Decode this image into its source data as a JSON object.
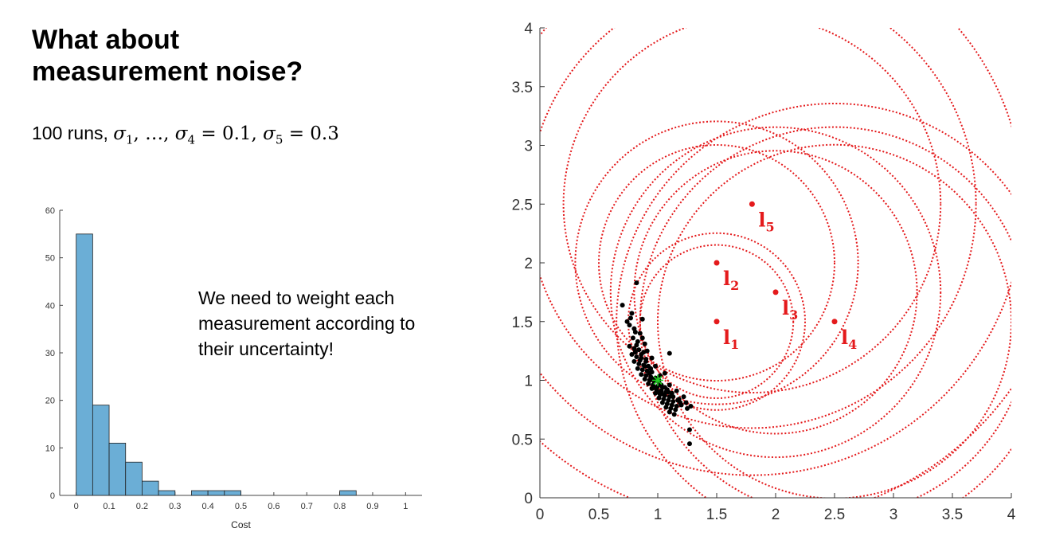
{
  "slide": {
    "title_line1": "What about",
    "title_line2": "measurement noise?",
    "subtitle_text": "100 runs, ",
    "subtitle_math": "σ1, …, σ4 = 0.1, σ5 = 0.3",
    "note_lines": [
      "We need to weight each",
      "measurement according to",
      "their uncertainty!"
    ]
  },
  "colors": {
    "bar_fill": "#6baed6",
    "bar_edge": "#222222",
    "circle": "#e41a1c",
    "landmark": "#e41a1c",
    "estimate": "#000000",
    "true_pose": "#22cc22"
  },
  "chart_data": [
    {
      "type": "bar",
      "title": "",
      "xlabel": "Cost",
      "ylabel": "",
      "xlim": [
        -0.05,
        1.05
      ],
      "ylim": [
        0,
        60
      ],
      "xticks": [
        "0",
        "0.1",
        "0.2",
        "0.3",
        "0.4",
        "0.5",
        "0.6",
        "0.7",
        "0.8",
        "0.9",
        "1"
      ],
      "yticks": [
        "0",
        "10",
        "20",
        "30",
        "40",
        "50",
        "60"
      ],
      "bin_width": 0.05,
      "bins": [
        {
          "x": 0.0,
          "count": 55
        },
        {
          "x": 0.05,
          "count": 19
        },
        {
          "x": 0.1,
          "count": 11
        },
        {
          "x": 0.15,
          "count": 7
        },
        {
          "x": 0.2,
          "count": 3
        },
        {
          "x": 0.25,
          "count": 1
        },
        {
          "x": 0.35,
          "count": 1
        },
        {
          "x": 0.4,
          "count": 1
        },
        {
          "x": 0.45,
          "count": 1
        },
        {
          "x": 0.8,
          "count": 1
        }
      ]
    },
    {
      "type": "scatter",
      "title": "",
      "xlabel": "",
      "ylabel": "",
      "xlim": [
        0,
        4
      ],
      "ylim": [
        0,
        4
      ],
      "xticks": [
        "0",
        "0.5",
        "1",
        "1.5",
        "2",
        "2.5",
        "3",
        "3.5",
        "4"
      ],
      "yticks": [
        "0",
        "0.5",
        "1",
        "1.5",
        "2",
        "2.5",
        "3",
        "3.5",
        "4"
      ],
      "landmarks": [
        {
          "label": "l",
          "sub": "1",
          "x": 1.5,
          "y": 1.5
        },
        {
          "label": "l",
          "sub": "2",
          "x": 1.5,
          "y": 2.0
        },
        {
          "label": "l",
          "sub": "3",
          "x": 2.0,
          "y": 1.75
        },
        {
          "label": "l",
          "sub": "4",
          "x": 2.5,
          "y": 1.5
        },
        {
          "label": "l",
          "sub": "5",
          "x": 1.8,
          "y": 2.5
        }
      ],
      "range_circles": [
        {
          "cx": 1.5,
          "cy": 1.5,
          "r": 0.65
        },
        {
          "cx": 1.5,
          "cy": 1.5,
          "r": 0.75
        },
        {
          "cx": 1.5,
          "cy": 2.0,
          "r": 1.0
        },
        {
          "cx": 1.5,
          "cy": 2.0,
          "r": 1.2
        },
        {
          "cx": 2.0,
          "cy": 1.75,
          "r": 1.2
        },
        {
          "cx": 2.0,
          "cy": 1.75,
          "r": 1.4
        },
        {
          "cx": 2.5,
          "cy": 1.5,
          "r": 1.5
        },
        {
          "cx": 2.5,
          "cy": 1.5,
          "r": 1.65
        },
        {
          "cx": 2.5,
          "cy": 1.5,
          "r": 1.85
        },
        {
          "cx": 1.8,
          "cy": 2.5,
          "r": 1.6
        },
        {
          "cx": 1.8,
          "cy": 2.5,
          "r": 1.9
        },
        {
          "cx": 1.8,
          "cy": 2.5,
          "r": 2.3
        },
        {
          "cx": 1.8,
          "cy": 2.5,
          "r": 2.7
        }
      ],
      "true_pose": {
        "x": 1.0,
        "y": 1.0
      },
      "estimates": [
        [
          0.82,
          1.83
        ],
        [
          0.7,
          1.64
        ],
        [
          0.77,
          1.53
        ],
        [
          0.87,
          1.52
        ],
        [
          0.76,
          1.47
        ],
        [
          0.8,
          1.44
        ],
        [
          0.85,
          1.4
        ],
        [
          0.79,
          1.36
        ],
        [
          0.83,
          1.33
        ],
        [
          0.89,
          1.31
        ],
        [
          0.76,
          1.29
        ],
        [
          0.8,
          1.27
        ],
        [
          0.84,
          1.26
        ],
        [
          0.88,
          1.24
        ],
        [
          0.78,
          1.22
        ],
        [
          0.82,
          1.2
        ],
        [
          0.86,
          1.19
        ],
        [
          0.9,
          1.18
        ],
        [
          0.8,
          1.16
        ],
        [
          0.84,
          1.14
        ],
        [
          0.88,
          1.13
        ],
        [
          0.92,
          1.12
        ],
        [
          0.83,
          1.1
        ],
        [
          0.87,
          1.09
        ],
        [
          0.91,
          1.08
        ],
        [
          0.95,
          1.07
        ],
        [
          0.86,
          1.05
        ],
        [
          0.9,
          1.04
        ],
        [
          0.94,
          1.03
        ],
        [
          0.98,
          1.02
        ],
        [
          0.89,
          1.01
        ],
        [
          0.93,
          1.0
        ],
        [
          0.97,
          0.99
        ],
        [
          1.01,
          0.98
        ],
        [
          0.92,
          0.97
        ],
        [
          0.96,
          0.96
        ],
        [
          1.0,
          0.95
        ],
        [
          1.04,
          0.94
        ],
        [
          0.95,
          0.93
        ],
        [
          0.99,
          0.92
        ],
        [
          1.03,
          0.91
        ],
        [
          1.07,
          0.9
        ],
        [
          0.98,
          0.89
        ],
        [
          1.02,
          0.88
        ],
        [
          1.06,
          0.87
        ],
        [
          1.1,
          0.86
        ],
        [
          1.01,
          0.85
        ],
        [
          1.05,
          0.84
        ],
        [
          1.09,
          0.83
        ],
        [
          1.13,
          0.82
        ],
        [
          1.04,
          0.81
        ],
        [
          1.08,
          0.8
        ],
        [
          1.12,
          0.79
        ],
        [
          1.16,
          0.78
        ],
        [
          1.07,
          0.77
        ],
        [
          1.11,
          0.76
        ],
        [
          1.15,
          0.75
        ],
        [
          1.1,
          0.73
        ],
        [
          1.14,
          0.71
        ],
        [
          1.2,
          0.79
        ],
        [
          1.24,
          0.81
        ],
        [
          1.28,
          0.78
        ],
        [
          1.18,
          0.84
        ],
        [
          1.22,
          0.86
        ],
        [
          1.12,
          0.89
        ],
        [
          1.16,
          0.91
        ],
        [
          1.06,
          0.94
        ],
        [
          1.1,
          0.96
        ],
        [
          1.02,
          1.04
        ],
        [
          1.06,
          1.06
        ],
        [
          0.94,
          1.1
        ],
        [
          0.98,
          1.12
        ],
        [
          0.9,
          1.16
        ],
        [
          0.95,
          1.19
        ],
        [
          0.86,
          1.22
        ],
        [
          0.91,
          1.25
        ],
        [
          1.1,
          1.23
        ],
        [
          0.82,
          1.3
        ],
        [
          0.87,
          1.36
        ],
        [
          0.81,
          1.41
        ],
        [
          0.74,
          1.5
        ],
        [
          0.78,
          1.57
        ],
        [
          1.27,
          0.58
        ],
        [
          1.27,
          0.46
        ],
        [
          1.05,
          0.88
        ],
        [
          1.0,
          0.9
        ],
        [
          0.97,
          0.94
        ],
        [
          1.08,
          0.92
        ],
        [
          1.13,
          0.86
        ],
        [
          1.17,
          0.83
        ],
        [
          0.93,
          1.06
        ],
        [
          0.89,
          1.12
        ],
        [
          0.85,
          1.17
        ],
        [
          0.81,
          1.24
        ],
        [
          1.03,
          0.96
        ],
        [
          0.96,
          1.01
        ],
        [
          1.01,
          1.0
        ],
        [
          1.09,
          0.9
        ],
        [
          1.19,
          0.81
        ],
        [
          1.25,
          0.76
        ]
      ]
    }
  ]
}
